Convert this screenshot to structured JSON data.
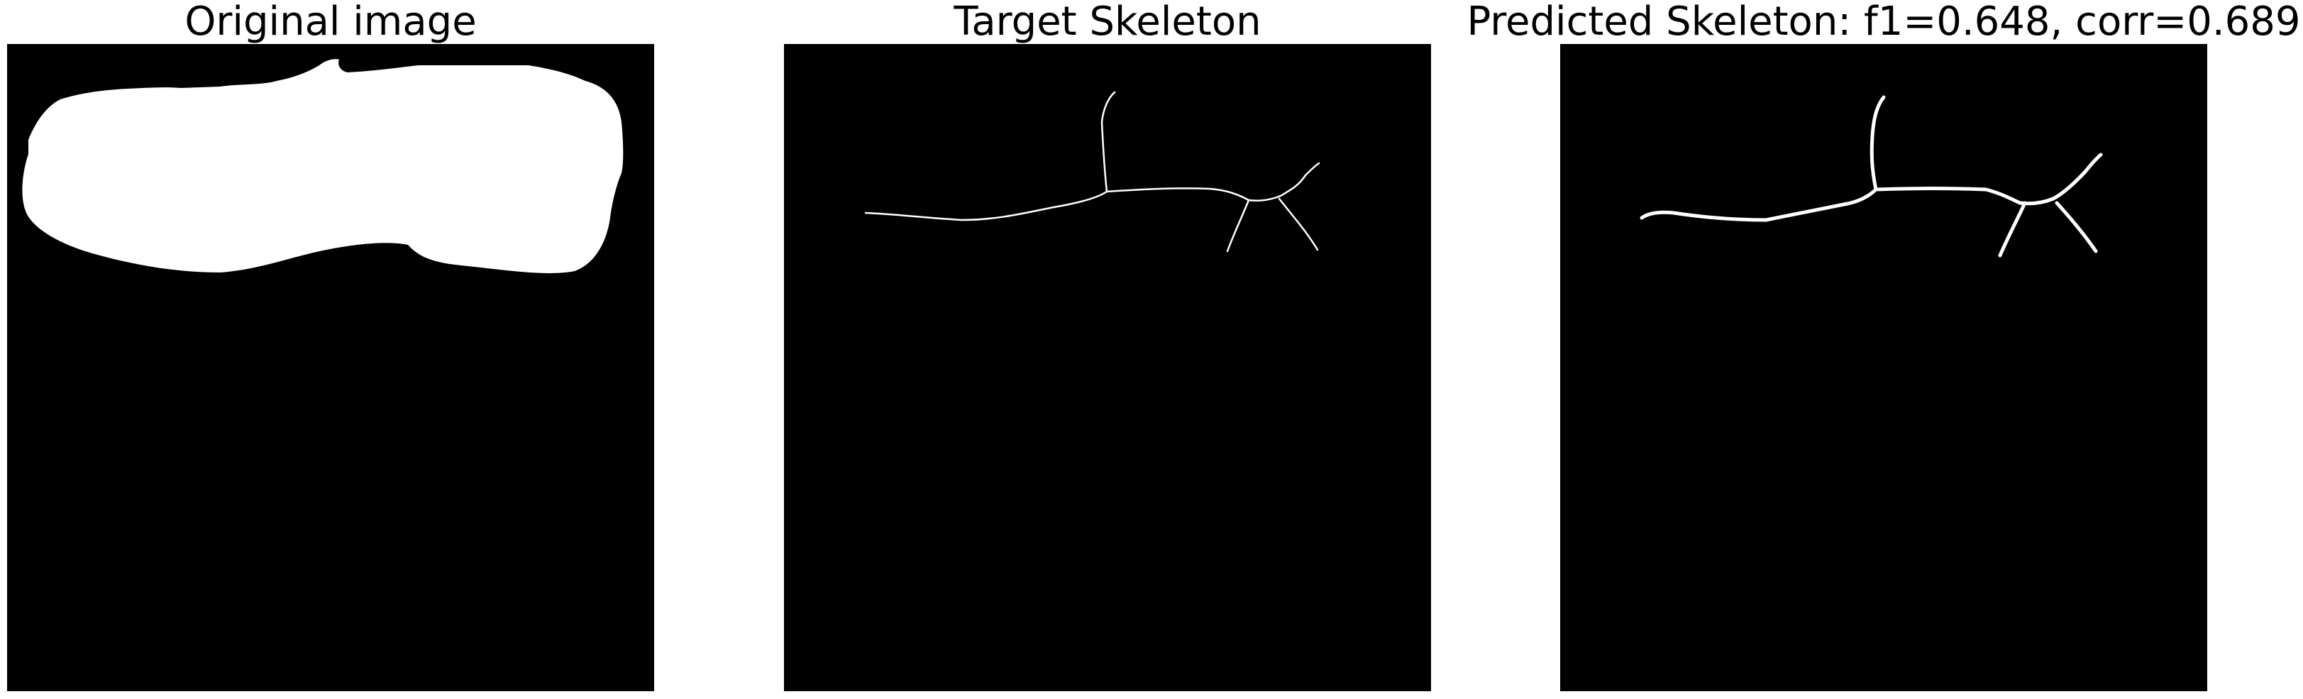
{
  "panels": [
    {
      "title": "Original image"
    },
    {
      "title": "Target Skeleton"
    },
    {
      "title": "Predicted Skeleton: f1=0.648, corr=0.689"
    }
  ],
  "colors": {
    "background": "#000000",
    "foreground": "#ffffff"
  }
}
